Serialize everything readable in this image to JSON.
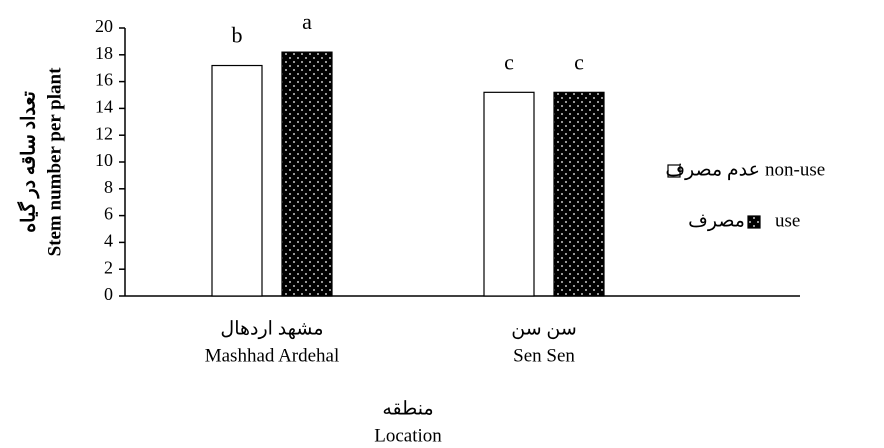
{
  "chart_data": {
    "type": "bar",
    "y_label_fa": "تعداد ساقه در گیاه",
    "y_label": "Stem number per plant",
    "x_label_fa": "منطقه",
    "x_label": "Location",
    "categories_fa": [
      "مشهد اردهال",
      "سن سن"
    ],
    "categories": [
      "Mashhad Ardehal",
      "Sen Sen"
    ],
    "series": [
      {
        "name": "non-use",
        "name_fa": "عدم مصرف",
        "color": "#ffffff",
        "values": [
          17.2,
          15.2
        ],
        "letters": [
          "b",
          "c"
        ]
      },
      {
        "name": "use",
        "name_fa": "مصرف",
        "color": "#000000",
        "pattern": "dots",
        "values": [
          18.2,
          15.2
        ],
        "letters": [
          "a",
          "c"
        ]
      }
    ],
    "ylim": [
      0,
      20
    ],
    "yticks": [
      0,
      2,
      4,
      6,
      8,
      10,
      12,
      14,
      16,
      18,
      20
    ],
    "grid": false
  }
}
